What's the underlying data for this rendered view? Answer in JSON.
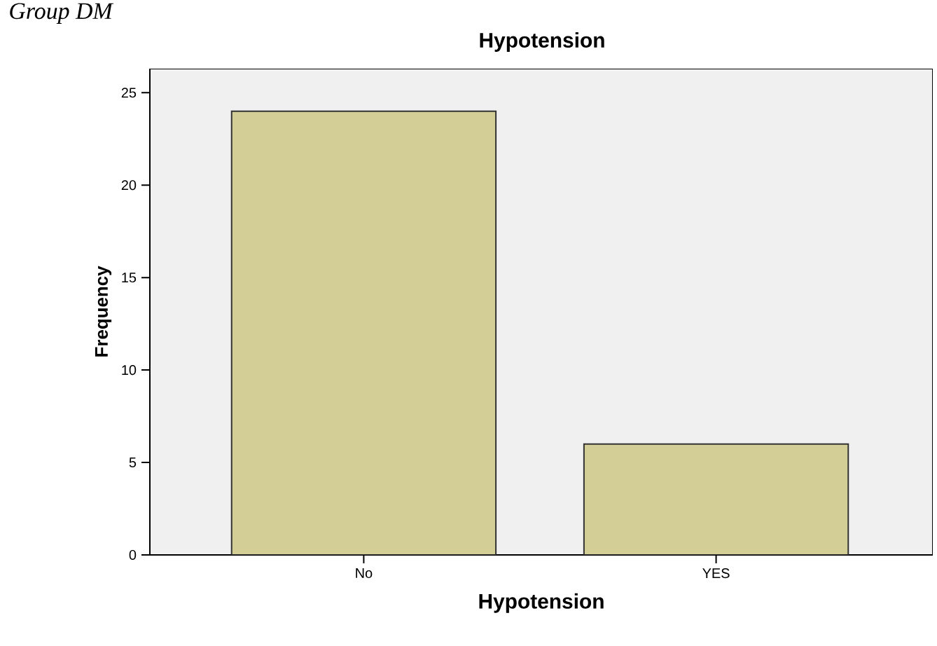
{
  "chart_data": {
    "type": "bar",
    "title": "Hypotension",
    "xlabel": "Hypotension",
    "ylabel": "Frequency",
    "categories": [
      "No",
      "YES"
    ],
    "values": [
      24,
      6
    ],
    "color": "#d2ce96",
    "ylim": [
      0,
      26.3
    ],
    "yticks": [
      0,
      5,
      10,
      15,
      20,
      25
    ],
    "annotations": [
      "Group DM"
    ]
  }
}
